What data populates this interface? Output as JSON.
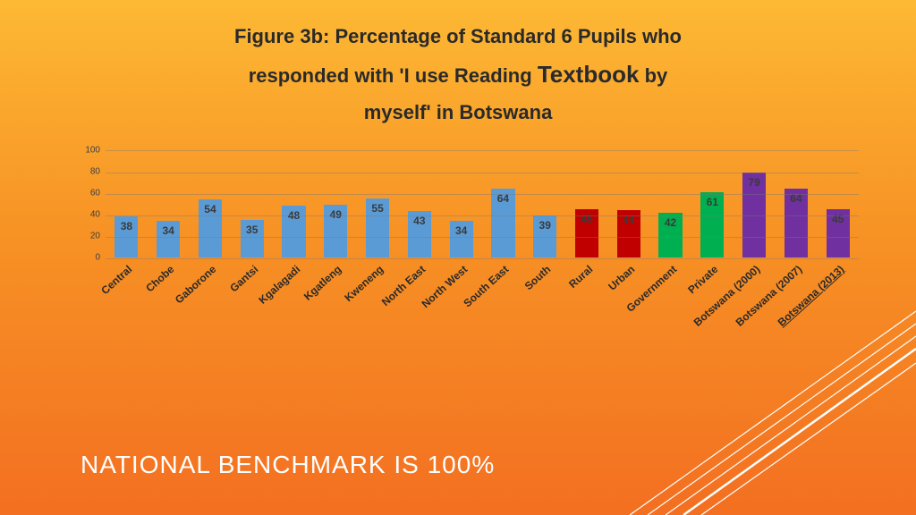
{
  "title": {
    "line1": "Figure 3b: Percentage of Standard 6 Pupils who",
    "line2_a": "responded with 'I use Reading ",
    "line2_emph": "Textbook",
    "line2_b": "  by",
    "line3": "myself' in Botswana",
    "color": "#2a2a2a"
  },
  "chart": {
    "type": "bar",
    "ylim": [
      0,
      100
    ],
    "ytick_step": 20,
    "yticks": [
      0,
      20,
      40,
      60,
      80,
      100
    ],
    "grid_color": "rgba(120,120,120,0.4)",
    "bar_width": 0.56,
    "label_fontsize": 12,
    "tick_fontsize": 10,
    "colors": {
      "region": "#5b9bd5",
      "locale": "#c00000",
      "sector": "#00b050",
      "national": "#7030a0"
    },
    "bars": [
      {
        "label": "Central",
        "value": 38,
        "group": "region",
        "underlined": false
      },
      {
        "label": "Chobe",
        "value": 34,
        "group": "region",
        "underlined": false
      },
      {
        "label": "Gaborone",
        "value": 54,
        "group": "region",
        "underlined": false
      },
      {
        "label": "Gantsi",
        "value": 35,
        "group": "region",
        "underlined": false
      },
      {
        "label": "Kgalagadi",
        "value": 48,
        "group": "region",
        "underlined": false
      },
      {
        "label": "Kgatleng",
        "value": 49,
        "group": "region",
        "underlined": false
      },
      {
        "label": "Kweneng",
        "value": 55,
        "group": "region",
        "underlined": false
      },
      {
        "label": "North East",
        "value": 43,
        "group": "region",
        "underlined": false
      },
      {
        "label": "North West",
        "value": 34,
        "group": "region",
        "underlined": false
      },
      {
        "label": "South East",
        "value": 64,
        "group": "region",
        "underlined": false
      },
      {
        "label": "South",
        "value": 39,
        "group": "region",
        "underlined": false
      },
      {
        "label": "Rural",
        "value": 45,
        "group": "locale",
        "underlined": false
      },
      {
        "label": "Urban",
        "value": 44,
        "group": "locale",
        "underlined": false
      },
      {
        "label": "Government",
        "value": 42,
        "group": "sector",
        "underlined": false
      },
      {
        "label": "Private",
        "value": 61,
        "group": "sector",
        "underlined": false
      },
      {
        "label": "Botswana (2000)",
        "value": 79,
        "group": "national",
        "underlined": false
      },
      {
        "label": "Botswana (2007)",
        "value": 64,
        "group": "national",
        "underlined": false
      },
      {
        "label": "Botswana (2013)",
        "value": 45,
        "group": "national",
        "underlined": true
      }
    ]
  },
  "benchmark": {
    "text": "NATIONAL BENCHMARK IS 100%",
    "color": "#ffffff",
    "fontsize": 28
  },
  "decor_line_color": "#ffffff"
}
